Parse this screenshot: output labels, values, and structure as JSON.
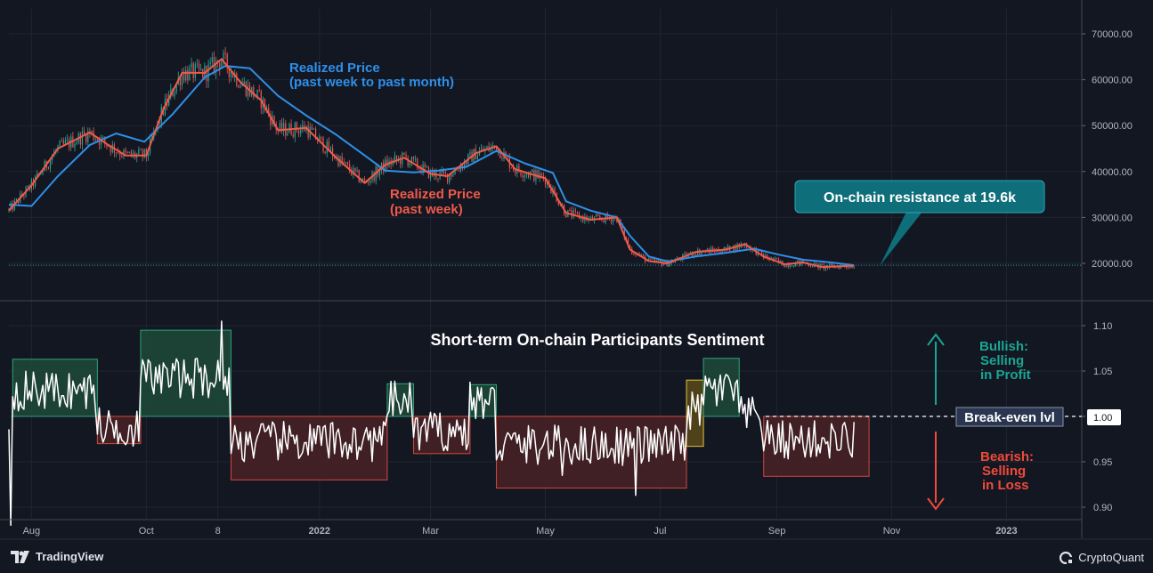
{
  "colors": {
    "background": "#131722",
    "grid": "#1f2430",
    "candle_up": "#26a69a",
    "candle_down": "#ef5350",
    "realized_week": "#f05a4a",
    "realized_month": "#2f8fe8",
    "sentiment_line": "#ffffff",
    "bullish_box": "#1e4a3a",
    "bearish_box": "#4a2226",
    "neutral_box": "#5a4a1a",
    "callout_bg": "#0e6e7a",
    "bullish_text": "#1aa593",
    "bearish_text": "#f04a3a"
  },
  "branding": {
    "tradingview": "TradingView",
    "cryptoquant": "CryptoQuant"
  },
  "chart_data": [
    {
      "type": "line",
      "panel": "price",
      "title": "",
      "ylabel": "",
      "ylim": [
        13000,
        75000
      ],
      "y_ticks": [
        "70000.00",
        "60000.00",
        "50000.00",
        "40000.00",
        "30000.00",
        "20000.00"
      ],
      "y_tick_values": [
        70000,
        60000,
        50000,
        40000,
        30000,
        20000
      ],
      "x_tick_labels": [
        "Aug",
        "Oct",
        "8",
        "2022",
        "Mar",
        "May",
        "Jul",
        "Sep",
        "Nov",
        "2023"
      ],
      "x_ticks_dates": [
        "2021-08-01",
        "2021-10-01",
        "2021-11-08",
        "2022-01-01",
        "2022-03-01",
        "2022-05-01",
        "2022-07-01",
        "2022-09-01",
        "2022-11-01",
        "2023-01-01"
      ],
      "x_range": [
        "2021-07-20",
        "2023-02-10"
      ],
      "guide_line": 19600,
      "series": [
        {
          "name": "Realized Price\n(past week to past month)",
          "label_line1": "Realized Price",
          "label_line2": "(past week to past month)",
          "color": "#2f8fe8",
          "points": [
            [
              "2021-07-20",
              32800
            ],
            [
              "2021-08-01",
              32500
            ],
            [
              "2021-08-15",
              39000
            ],
            [
              "2021-09-01",
              45800
            ],
            [
              "2021-09-15",
              48300
            ],
            [
              "2021-09-30",
              46500
            ],
            [
              "2021-10-15",
              52500
            ],
            [
              "2021-11-01",
              60500
            ],
            [
              "2021-11-12",
              63000
            ],
            [
              "2021-11-25",
              62500
            ],
            [
              "2021-12-10",
              56500
            ],
            [
              "2021-12-25",
              52200
            ],
            [
              "2022-01-10",
              48000
            ],
            [
              "2022-01-25",
              43500
            ],
            [
              "2022-02-05",
              40200
            ],
            [
              "2022-02-20",
              39800
            ],
            [
              "2022-03-05",
              40200
            ],
            [
              "2022-03-20",
              41000
            ],
            [
              "2022-04-05",
              44500
            ],
            [
              "2022-04-20",
              41800
            ],
            [
              "2022-05-05",
              39700
            ],
            [
              "2022-05-12",
              33500
            ],
            [
              "2022-05-25",
              31500
            ],
            [
              "2022-06-08",
              30000
            ],
            [
              "2022-06-15",
              26000
            ],
            [
              "2022-06-25",
              21500
            ],
            [
              "2022-07-05",
              20400
            ],
            [
              "2022-07-20",
              21500
            ],
            [
              "2022-08-05",
              22300
            ],
            [
              "2022-08-20",
              23200
            ],
            [
              "2022-09-01",
              22000
            ],
            [
              "2022-09-15",
              20800
            ],
            [
              "2022-09-30",
              20200
            ],
            [
              "2022-10-12",
              19600
            ]
          ]
        },
        {
          "name": "Realized Price\n(past week)",
          "label_line1": "Realized Price",
          "label_line2": "(past week)",
          "color": "#f05a4a",
          "points": [
            [
              "2021-07-20",
              31500
            ],
            [
              "2021-08-01",
              37000
            ],
            [
              "2021-08-15",
              45000
            ],
            [
              "2021-09-01",
              48500
            ],
            [
              "2021-09-10",
              46000
            ],
            [
              "2021-09-20",
              43500
            ],
            [
              "2021-10-01",
              43500
            ],
            [
              "2021-10-10",
              53500
            ],
            [
              "2021-10-20",
              61500
            ],
            [
              "2021-11-01",
              61500
            ],
            [
              "2021-11-10",
              64500
            ],
            [
              "2021-11-20",
              59500
            ],
            [
              "2021-12-01",
              55500
            ],
            [
              "2021-12-10",
              49000
            ],
            [
              "2021-12-25",
              49500
            ],
            [
              "2022-01-10",
              43000
            ],
            [
              "2022-01-25",
              37500
            ],
            [
              "2022-02-05",
              41500
            ],
            [
              "2022-02-15",
              43000
            ],
            [
              "2022-03-01",
              39500
            ],
            [
              "2022-03-10",
              39000
            ],
            [
              "2022-03-25",
              44000
            ],
            [
              "2022-04-05",
              45500
            ],
            [
              "2022-04-15",
              40500
            ],
            [
              "2022-05-01",
              38500
            ],
            [
              "2022-05-12",
              31000
            ],
            [
              "2022-05-25",
              29500
            ],
            [
              "2022-06-08",
              30000
            ],
            [
              "2022-06-15",
              23000
            ],
            [
              "2022-06-25",
              20500
            ],
            [
              "2022-07-05",
              20000
            ],
            [
              "2022-07-20",
              22500
            ],
            [
              "2022-08-05",
              23000
            ],
            [
              "2022-08-15",
              24200
            ],
            [
              "2022-08-25",
              21500
            ],
            [
              "2022-09-05",
              19800
            ],
            [
              "2022-09-15",
              20200
            ],
            [
              "2022-09-25",
              19200
            ],
            [
              "2022-10-12",
              19500
            ]
          ]
        }
      ],
      "annotations": {
        "callout": "On-chain resistance at 19.6k"
      }
    },
    {
      "type": "line",
      "panel": "sentiment",
      "title": "Short-term On-chain Participants Sentiment",
      "ylim": [
        0.895,
        1.125
      ],
      "y_ticks": [
        "1.10",
        "1.05",
        "1.00",
        "0.95",
        "0.90"
      ],
      "y_tick_values": [
        1.1,
        1.05,
        1.0,
        0.95,
        0.9
      ],
      "current_value": "1.00",
      "break_even_label": "Break-even lvl",
      "bullish_label": [
        "Bullish:",
        "Selling",
        "in Profit"
      ],
      "bearish_label": [
        "Bearish:",
        "Selling",
        "in Loss"
      ],
      "regions": [
        {
          "kind": "bullish",
          "start": "2021-07-22",
          "end": "2021-09-05",
          "y0": 1.0,
          "y1": 1.063
        },
        {
          "kind": "bearish",
          "start": "2021-09-05",
          "end": "2021-09-28",
          "y0": 0.97,
          "y1": 1.0
        },
        {
          "kind": "bullish",
          "start": "2021-09-28",
          "end": "2021-11-15",
          "y0": 1.0,
          "y1": 1.095
        },
        {
          "kind": "bearish",
          "start": "2021-11-15",
          "end": "2022-02-06",
          "y0": 0.93,
          "y1": 1.0
        },
        {
          "kind": "bullish",
          "start": "2022-02-06",
          "end": "2022-02-20",
          "y0": 1.0,
          "y1": 1.036
        },
        {
          "kind": "bearish",
          "start": "2022-02-20",
          "end": "2022-03-22",
          "y0": 0.959,
          "y1": 1.0
        },
        {
          "kind": "bullish",
          "start": "2022-03-22",
          "end": "2022-04-05",
          "y0": 1.0,
          "y1": 1.035
        },
        {
          "kind": "bearish",
          "start": "2022-04-05",
          "end": "2022-07-15",
          "y0": 0.921,
          "y1": 1.0
        },
        {
          "kind": "neutral",
          "start": "2022-07-15",
          "end": "2022-07-24",
          "y0": 0.967,
          "y1": 1.04
        },
        {
          "kind": "bullish",
          "start": "2022-07-24",
          "end": "2022-08-12",
          "y0": 1.0,
          "y1": 1.064
        },
        {
          "kind": "bearish",
          "start": "2022-08-25",
          "end": "2022-10-20",
          "y0": 0.934,
          "y1": 1.0
        }
      ]
    }
  ]
}
